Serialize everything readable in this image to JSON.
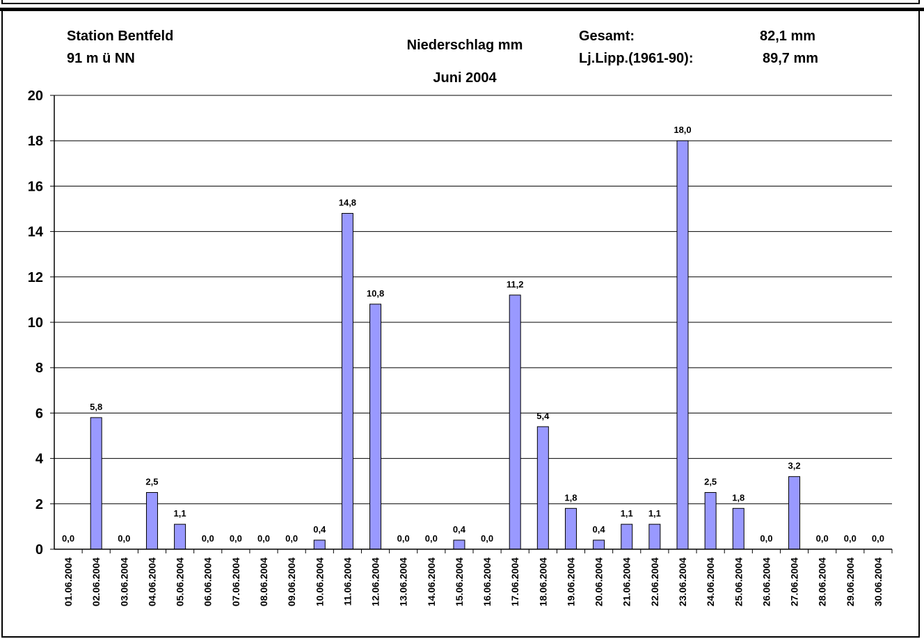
{
  "header": {
    "station": "Station Bentfeld",
    "elevation": "91 m ü NN",
    "measure": "Niederschlag mm",
    "period": "Juni 2004",
    "total_label": "Gesamt:",
    "total_value": "82,1 mm",
    "longterm_label": "Lj.Lipp.(1961-90):",
    "longterm_value": "89,7 mm"
  },
  "colors": {
    "bar_fill": "#9999ff",
    "bar_stroke": "#000000",
    "grid": "#000000"
  },
  "chart_data": {
    "type": "bar",
    "title": "Niederschlag mm",
    "xlabel": "",
    "ylabel": "",
    "ylim": [
      0,
      20
    ],
    "yticks": [
      "0",
      "2",
      "4",
      "6",
      "8",
      "10",
      "12",
      "14",
      "16",
      "18",
      "20"
    ],
    "grid": true,
    "legend": "none",
    "categories": [
      "01.06.2004",
      "02.06.2004",
      "03.06.2004",
      "04.06.2004",
      "05.06.2004",
      "06.06.2004",
      "07.06.2004",
      "08.06.2004",
      "09.06.2004",
      "10.06.2004",
      "11.06.2004",
      "12.06.2004",
      "13.06.2004",
      "14.06.2004",
      "15.06.2004",
      "16.06.2004",
      "17.06.2004",
      "18.06.2004",
      "19.06.2004",
      "20.06.2004",
      "21.06.2004",
      "22.06.2004",
      "23.06.2004",
      "24.06.2004",
      "25.06.2004",
      "26.06.2004",
      "27.06.2004",
      "28.06.2004",
      "29.06.2004",
      "30.06.2004"
    ],
    "values": [
      0.0,
      5.8,
      0.0,
      2.5,
      1.1,
      0.0,
      0.0,
      0.0,
      0.0,
      0.4,
      14.8,
      10.8,
      0.0,
      0.0,
      0.4,
      0.0,
      11.2,
      5.4,
      1.8,
      0.4,
      1.1,
      1.1,
      18.0,
      2.5,
      1.8,
      0.0,
      3.2,
      0.0,
      0.0,
      0.0
    ],
    "labels": [
      "0,0",
      "5,8",
      "0,0",
      "2,5",
      "1,1",
      "0,0",
      "0,0",
      "0,0",
      "0,0",
      "0,4",
      "14,8",
      "10,8",
      "0,0",
      "0,0",
      "0,4",
      "0,0",
      "11,2",
      "5,4",
      "1,8",
      "0,4",
      "1,1",
      "1,1",
      "18,0",
      "2,5",
      "1,8",
      "0,0",
      "3,2",
      "0,0",
      "0,0",
      "0,0"
    ]
  }
}
